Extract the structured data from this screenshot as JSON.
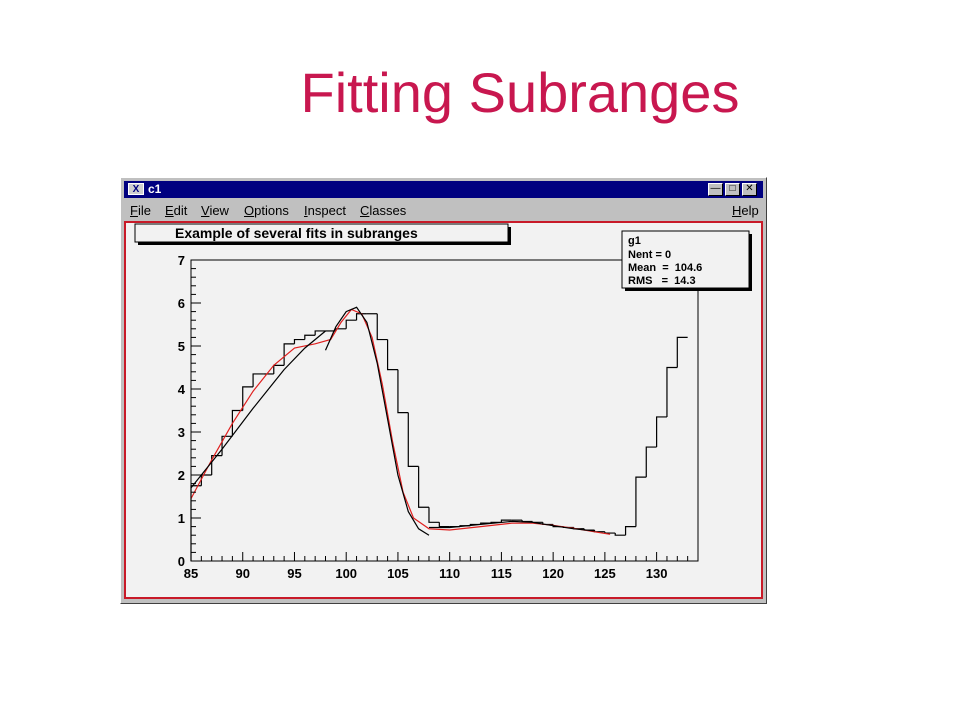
{
  "slide": {
    "title": "Fitting Subranges"
  },
  "window": {
    "title": "c1",
    "sys_icon": "X",
    "controls": [
      "minimize-icon",
      "maximize-icon",
      "close-icon"
    ]
  },
  "menu": {
    "left": [
      {
        "key": "F",
        "rest": "ile"
      },
      {
        "key": "E",
        "rest": "dit"
      },
      {
        "key": "V",
        "rest": "iew"
      },
      {
        "key": "O",
        "rest": "ptions"
      },
      {
        "key": "I",
        "rest": "nspect"
      },
      {
        "key": "C",
        "rest": "lasses"
      }
    ],
    "right": {
      "key": "H",
      "rest": "elp"
    }
  },
  "colors": {
    "title": "#c8174f",
    "titlebar": "#000080",
    "frame": "#c81a28",
    "fit": "#e0201f",
    "hist": "#000000"
  },
  "stats": {
    "name": "g1",
    "lines": [
      "Nent = 0",
      "Mean  =  104.6",
      "RMS   =  14.3"
    ]
  },
  "chart_data": {
    "type": "line",
    "title": "Example of several fits in subranges",
    "xlabel": "",
    "ylabel": "",
    "xlim": [
      85,
      134
    ],
    "ylim": [
      0,
      7
    ],
    "xticks": [
      85,
      90,
      95,
      100,
      105,
      110,
      115,
      120,
      125,
      130
    ],
    "yticks": [
      0,
      1,
      2,
      3,
      4,
      5,
      6,
      7
    ],
    "grid": false,
    "histogram": {
      "bin_width": 1,
      "edges_start": 85,
      "values": [
        1.75,
        2.0,
        2.45,
        2.9,
        3.5,
        4.05,
        4.35,
        4.35,
        4.55,
        5.05,
        5.15,
        5.25,
        5.35,
        5.35,
        5.4,
        5.6,
        5.75,
        5.75,
        5.15,
        4.45,
        3.45,
        2.2,
        1.25,
        0.9,
        0.8,
        0.8,
        0.82,
        0.85,
        0.88,
        0.9,
        0.95,
        0.95,
        0.92,
        0.9,
        0.85,
        0.8,
        0.78,
        0.75,
        0.72,
        0.68,
        0.65,
        0.6,
        0.8,
        1.95,
        2.65,
        3.35,
        4.5,
        5.2
      ]
    },
    "series": [
      {
        "name": "",
        "color": "#e0201f",
        "x": [
          85,
          87,
          89,
          91,
          93,
          95,
          97,
          98.5,
          99.5,
          100.5,
          101.5,
          102.5,
          103.5,
          104.5,
          105.5,
          106.5,
          108,
          110,
          113,
          116,
          118,
          120,
          122,
          124,
          125.5
        ],
        "y": [
          1.45,
          2.35,
          3.2,
          3.95,
          4.55,
          4.95,
          5.05,
          5.15,
          5.55,
          5.85,
          5.75,
          5.2,
          4.1,
          2.75,
          1.6,
          1.0,
          0.75,
          0.72,
          0.8,
          0.88,
          0.88,
          0.83,
          0.76,
          0.68,
          0.62
        ]
      },
      {
        "name": "",
        "color": "#000000",
        "x": [
          85,
          88,
          91,
          94,
          96,
          98
        ],
        "y": [
          1.7,
          2.6,
          3.55,
          4.45,
          4.95,
          5.35
        ]
      },
      {
        "name": "",
        "color": "#000000",
        "x": [
          98,
          99,
          100,
          101,
          102,
          103,
          104,
          105,
          106,
          107,
          108
        ],
        "y": [
          4.9,
          5.45,
          5.8,
          5.9,
          5.55,
          4.6,
          3.3,
          2.0,
          1.15,
          0.75,
          0.6
        ]
      },
      {
        "name": "",
        "color": "#000000",
        "x": [
          108,
          110,
          113,
          116,
          118,
          120,
          122,
          124
        ],
        "y": [
          0.78,
          0.78,
          0.85,
          0.92,
          0.9,
          0.82,
          0.75,
          0.7
        ]
      }
    ]
  }
}
